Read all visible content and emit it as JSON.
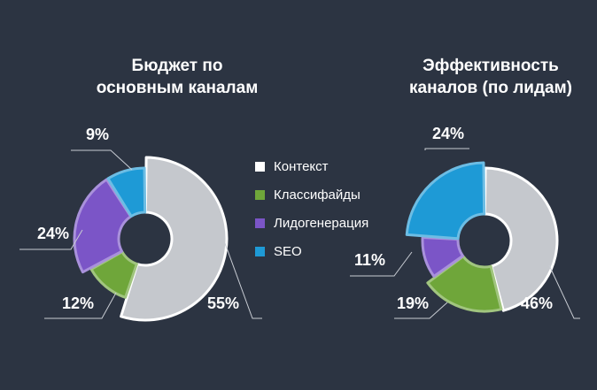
{
  "legend": {
    "items": [
      {
        "label": "Контекст",
        "color": "#c5c8cd"
      },
      {
        "label": "Классифайды",
        "color": "#6fa63a"
      },
      {
        "label": "Лидогенерация",
        "color": "#7b55c7"
      },
      {
        "label": "SEO",
        "color": "#1e9ad6"
      }
    ]
  },
  "chart_data": [
    {
      "type": "pie",
      "title_lines": [
        "Бюджет по",
        "основным каналам"
      ],
      "categories": [
        "Контекст",
        "Классифайды",
        "Лидогенерация",
        "SEO"
      ],
      "values": [
        55,
        12,
        24,
        9
      ],
      "labels": [
        "55%",
        "12%",
        "24%",
        "9%"
      ],
      "colors": [
        "#c5c8cd",
        "#6fa63a",
        "#7b55c7",
        "#1e9ad6"
      ]
    },
    {
      "type": "pie",
      "title_lines": [
        "Эффективность",
        "каналов (по лидам)"
      ],
      "categories": [
        "Контекст",
        "Классифайды",
        "Лидогенерация",
        "SEO"
      ],
      "values": [
        46,
        19,
        11,
        24
      ],
      "labels": [
        "46%",
        "19%",
        "11%",
        "24%"
      ],
      "colors": [
        "#c5c8cd",
        "#6fa63a",
        "#7b55c7",
        "#1e9ad6"
      ]
    }
  ]
}
